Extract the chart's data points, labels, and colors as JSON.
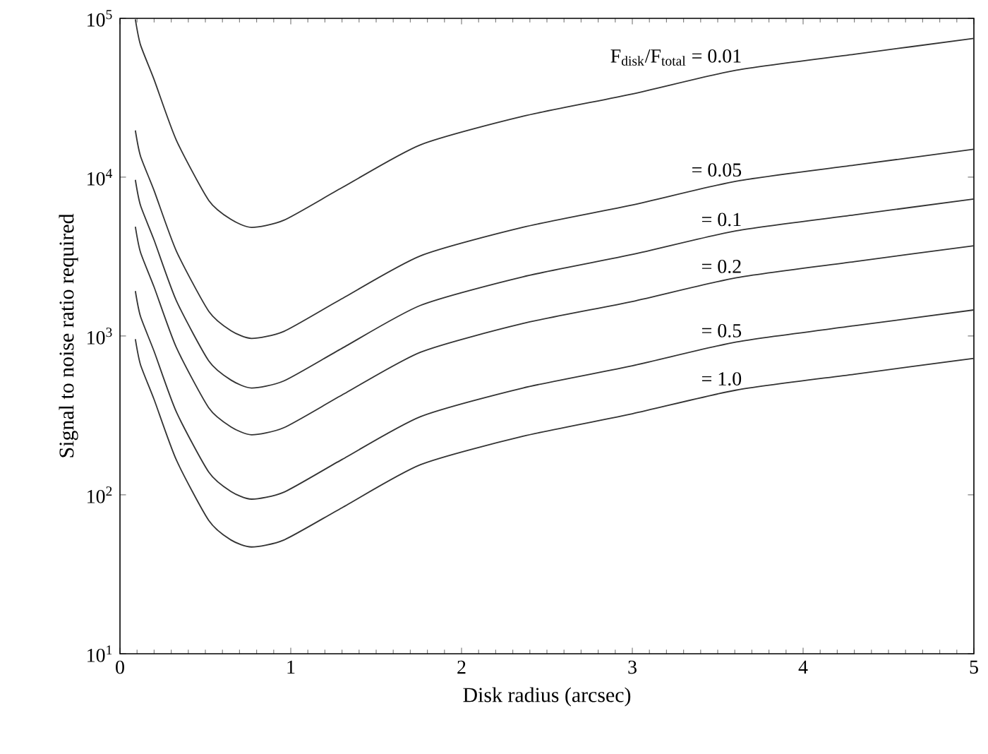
{
  "chart_data": {
    "type": "line",
    "xlabel": "Disk radius (arcsec)",
    "ylabel": "Signal to noise ratio required",
    "log": true,
    "xlim": [
      0,
      5
    ],
    "xticks": [
      0,
      1,
      2,
      3,
      4,
      5
    ],
    "ylim": [
      10,
      100000
    ],
    "yticks": [
      {
        "value": 10,
        "label": "10$^{1}$"
      },
      {
        "value": 100,
        "label": "10$^{2}$"
      },
      {
        "value": 1000,
        "label": "10$^{3}$"
      },
      {
        "value": 10000,
        "label": "10$^{4}$"
      },
      {
        "value": 100000,
        "label": "10$^{5}$"
      }
    ],
    "x": [
      0.09,
      0.12,
      0.2,
      0.33,
      0.52,
      0.65,
      0.77,
      0.96,
      1.3,
      1.76,
      2.36,
      3.0,
      3.61,
      4.3,
      5.0
    ],
    "series": [
      {
        "name": "F$_{disk}$/F$_{total}$ = 0.01",
        "color": "#333333",
        "values": [
          98600,
          68200,
          41100,
          17100,
          7140,
          5420,
          4830,
          5360,
          8590,
          16000,
          24200,
          33400,
          47200,
          59400,
          74800
        ]
      },
      {
        "name": "= 0.05",
        "color": "#333333",
        "values": [
          19700,
          13600,
          8220,
          3430,
          1430,
          1080,
          966,
          1070,
          1720,
          3200,
          4840,
          6680,
          9440,
          11900,
          15000
        ]
      },
      {
        "name": "= 0.1",
        "color": "#333333",
        "values": [
          9620,
          6650,
          4010,
          1670,
          697,
          528,
          471,
          522,
          837,
          1560,
          2360,
          3260,
          4600,
          5790,
          7290
        ]
      },
      {
        "name": "= 0.2",
        "color": "#333333",
        "values": [
          4880,
          3370,
          2030,
          847,
          353,
          268,
          239,
          265,
          425,
          791,
          1200,
          1650,
          2330,
          2940,
          3700
        ]
      },
      {
        "name": "= 0.5",
        "color": "#333333",
        "values": [
          1920,
          1330,
          800,
          333,
          139,
          105,
          94,
          104,
          167,
          311,
          471,
          650,
          918,
          1160,
          1460
        ]
      },
      {
        "name": "= 1.0",
        "color": "#333333",
        "values": [
          955,
          661,
          398,
          166,
          69,
          52,
          47,
          52,
          83,
          155,
          234,
          324,
          457,
          575,
          724
        ]
      }
    ]
  }
}
